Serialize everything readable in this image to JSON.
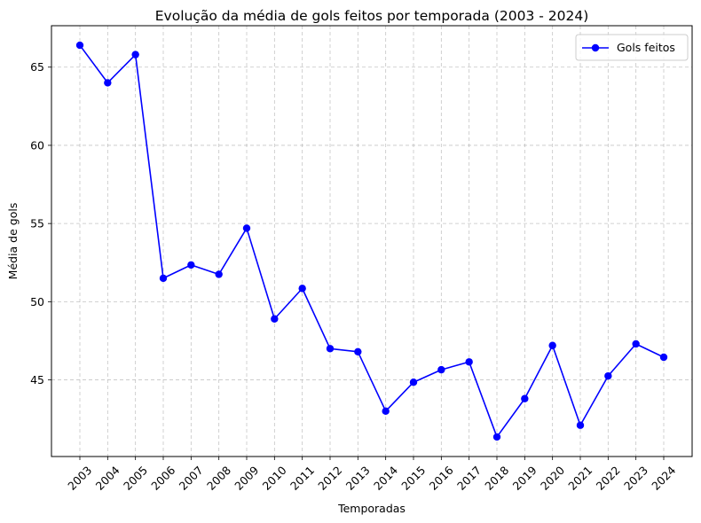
{
  "chart_data": {
    "type": "line",
    "title": "Evolução da média de gols feitos por temporada (2003 - 2024)",
    "xlabel": "Temporadas",
    "ylabel": "Média de gols",
    "categories": [
      "2003",
      "2004",
      "2005",
      "2006",
      "2007",
      "2008",
      "2009",
      "2010",
      "2011",
      "2012",
      "2013",
      "2014",
      "2015",
      "2016",
      "2017",
      "2018",
      "2019",
      "2020",
      "2021",
      "2022",
      "2023",
      "2024"
    ],
    "series": [
      {
        "name": "Gols feitos",
        "color": "#0000ff",
        "marker": "circle",
        "values": [
          66.4,
          64.0,
          65.8,
          51.5,
          52.35,
          51.75,
          54.7,
          48.9,
          50.85,
          47.0,
          46.8,
          43.0,
          44.85,
          45.65,
          46.15,
          41.35,
          43.8,
          47.2,
          42.1,
          45.25,
          47.3,
          46.45
        ]
      }
    ],
    "yticks": [
      45,
      50,
      55,
      60,
      65
    ],
    "ylim": [
      40.1,
      67.65
    ],
    "grid": true,
    "legend_position": "top-right"
  }
}
